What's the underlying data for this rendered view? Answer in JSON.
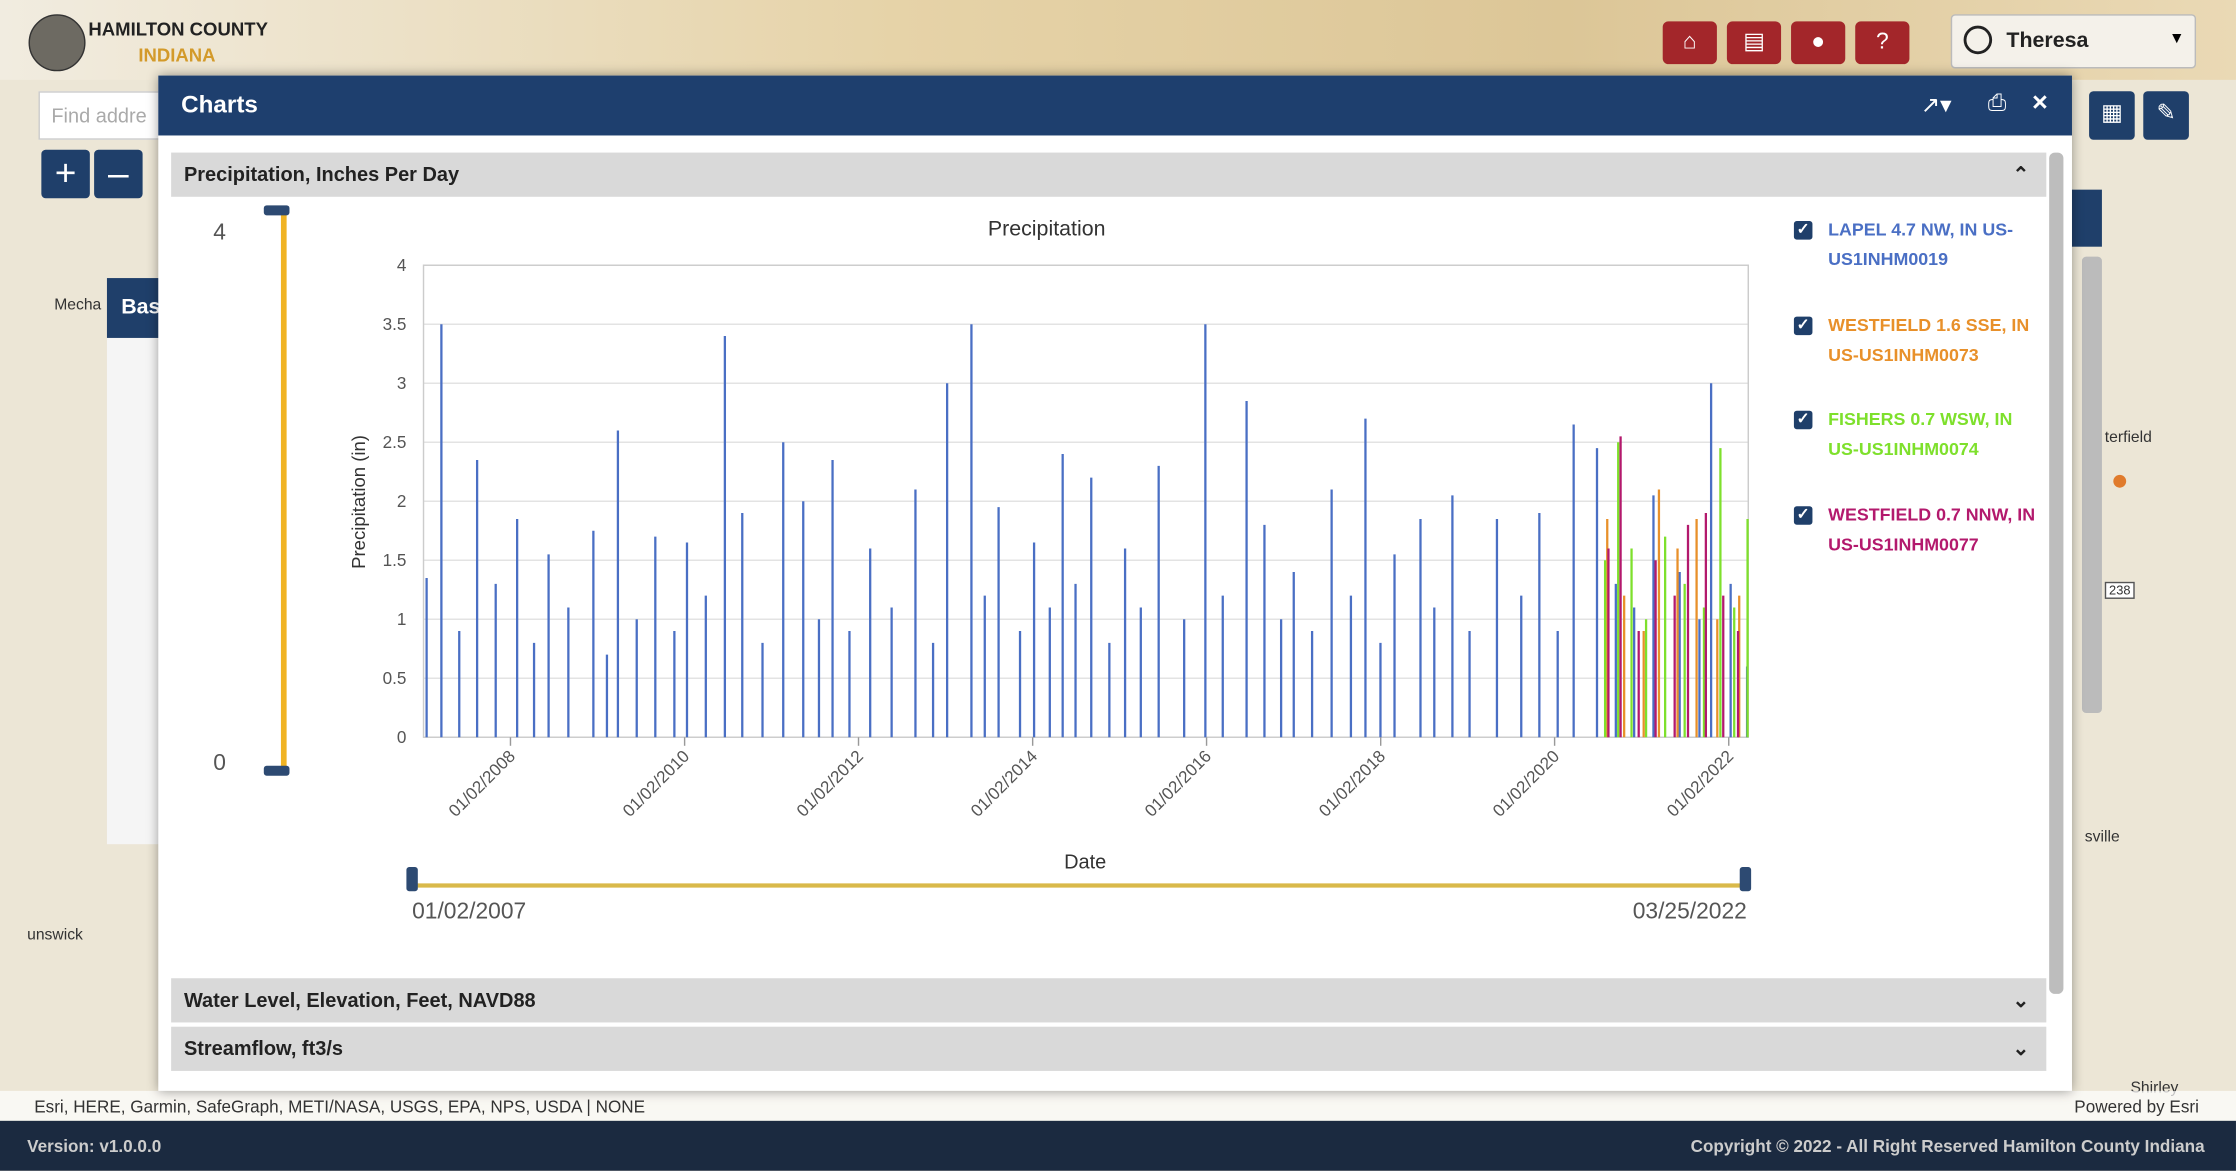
{
  "header": {
    "title": "HAMILTON COUNTY",
    "subtitle": "INDIANA",
    "user": "Theresa"
  },
  "search": {
    "placeholder": "Find addre"
  },
  "map": {
    "labels": [
      "Mecha",
      "Bas",
      "terfield",
      "238",
      "sville",
      "unswick",
      "Shirley"
    ]
  },
  "dialog": {
    "title": "Charts",
    "panels": [
      "Precipitation, Inches Per Day",
      "Water Level, Elevation, Feet, NAVD88",
      "Streamflow, ft3/s"
    ]
  },
  "chart_data": {
    "type": "bar",
    "title": "Precipitation",
    "x_label": "Date",
    "y_label": "Precipitation (in)",
    "xlim": [
      "01/02/2007",
      "03/25/2022"
    ],
    "xticks": [
      "01/02/2008",
      "01/02/2010",
      "01/02/2012",
      "01/02/2014",
      "01/02/2016",
      "01/02/2018",
      "01/02/2020",
      "01/02/2022"
    ],
    "ylim": [
      0,
      4
    ],
    "yticks": [
      0,
      0.5,
      1,
      1.5,
      2,
      2.5,
      3,
      3.5,
      4
    ],
    "grid": true,
    "series": [
      {
        "name": "LAPEL 4.7 NW, IN US-US1INHM0019",
        "color": "#4a6fc4",
        "x": [
          "01/15/2007",
          "03/18/2007",
          "06/01/2007",
          "08/15/2007",
          "11/01/2007",
          "01/30/2008",
          "04/10/2008",
          "06/10/2008",
          "09/01/2008",
          "12/15/2008",
          "02/10/2009",
          "03/28/2009",
          "06/15/2009",
          "09/01/2009",
          "11/20/2009",
          "01/12/2010",
          "04/01/2010",
          "06/20/2010",
          "09/01/2010",
          "11/25/2010",
          "02/20/2011",
          "05/15/2011",
          "07/20/2011",
          "09/15/2011",
          "11/25/2011",
          "02/20/2012",
          "05/20/2012",
          "08/28/2012",
          "11/10/2012",
          "01/08/2013",
          "04/20/2013",
          "06/15/2013",
          "08/12/2013",
          "11/10/2013",
          "01/08/2014",
          "03/15/2014",
          "05/08/2014",
          "07/01/2014",
          "09/05/2014",
          "11/20/2014",
          "01/25/2015",
          "04/01/2015",
          "06/15/2015",
          "09/30/2015",
          "12/28/2015",
          "03/10/2016",
          "06/18/2016",
          "09/01/2016",
          "11/10/2016",
          "01/02/2017",
          "03/20/2017",
          "06/10/2017",
          "08/30/2017",
          "10/30/2017",
          "01/01/2018",
          "03/01/2018",
          "06/18/2018",
          "08/15/2018",
          "10/30/2018",
          "01/10/2019",
          "05/05/2019",
          "08/15/2019",
          "10/30/2019",
          "01/15/2020",
          "03/22/2020",
          "06/28/2020",
          "09/15/2020",
          "12/01/2020",
          "02/20/2021",
          "06/10/2021",
          "09/01/2021",
          "10/20/2021",
          "01/10/2022",
          "03/20/2022"
        ],
        "values": [
          1.35,
          3.5,
          0.9,
          2.35,
          1.3,
          1.85,
          0.8,
          1.55,
          1.1,
          1.75,
          0.7,
          2.6,
          1.0,
          1.7,
          0.9,
          1.65,
          1.2,
          3.4,
          1.9,
          0.8,
          2.5,
          2.0,
          1.0,
          2.35,
          0.9,
          1.6,
          1.1,
          2.1,
          0.8,
          3.0,
          3.5,
          1.2,
          1.95,
          0.9,
          1.65,
          1.1,
          2.4,
          1.3,
          2.2,
          0.8,
          1.6,
          1.1,
          2.3,
          1.0,
          3.5,
          1.2,
          2.85,
          1.8,
          1.0,
          1.4,
          0.9,
          2.1,
          1.2,
          2.7,
          0.8,
          1.55,
          1.85,
          1.1,
          2.05,
          0.9,
          1.85,
          1.2,
          1.9,
          0.9,
          2.65,
          2.45,
          1.3,
          1.1,
          2.05,
          1.4,
          1.0,
          3.0,
          1.3,
          0.6
        ]
      },
      {
        "name": "WESTFIELD 1.6 SSE, IN US-US1INHM0073",
        "color": "#e8902a",
        "x": [
          "08/10/2020",
          "10/20/2020",
          "01/10/2021",
          "03/15/2021",
          "06/01/2021",
          "08/20/2021",
          "11/15/2021",
          "02/15/2022"
        ],
        "values": [
          1.85,
          1.2,
          0.9,
          2.1,
          1.6,
          1.85,
          1.0,
          1.2
        ]
      },
      {
        "name": "FISHERS 0.7 WSW, IN US-US1INHM0074",
        "color": "#7ee02c",
        "x": [
          "08/01/2020",
          "09/25/2020",
          "11/20/2020",
          "01/20/2021",
          "04/10/2021",
          "07/01/2021",
          "09/20/2021",
          "11/28/2021",
          "01/25/2022",
          "03/22/2022"
        ],
        "values": [
          1.5,
          2.5,
          1.6,
          1.0,
          1.7,
          1.3,
          1.1,
          2.45,
          1.1,
          1.85
        ]
      },
      {
        "name": "WESTFIELD 0.7 NNW, IN US-US1INHM0077",
        "color": "#b3196d",
        "x": [
          "08/15/2020",
          "10/05/2020",
          "12/20/2020",
          "03/01/2021",
          "05/20/2021",
          "07/15/2021",
          "09/28/2021",
          "12/10/2021",
          "02/10/2022"
        ],
        "values": [
          1.6,
          2.55,
          0.9,
          1.5,
          1.2,
          1.8,
          1.9,
          1.2,
          0.9
        ]
      }
    ]
  },
  "footer": {
    "attribution": "Esri, HERE, Garmin, SafeGraph, METI/NASA, USGS, EPA, NPS, USDA | NONE",
    "powered": "Powered by Esri",
    "version": "Version: v1.0.0.0",
    "copyright": "Copyright © 2022 - All Right Reserved Hamilton County Indiana"
  }
}
